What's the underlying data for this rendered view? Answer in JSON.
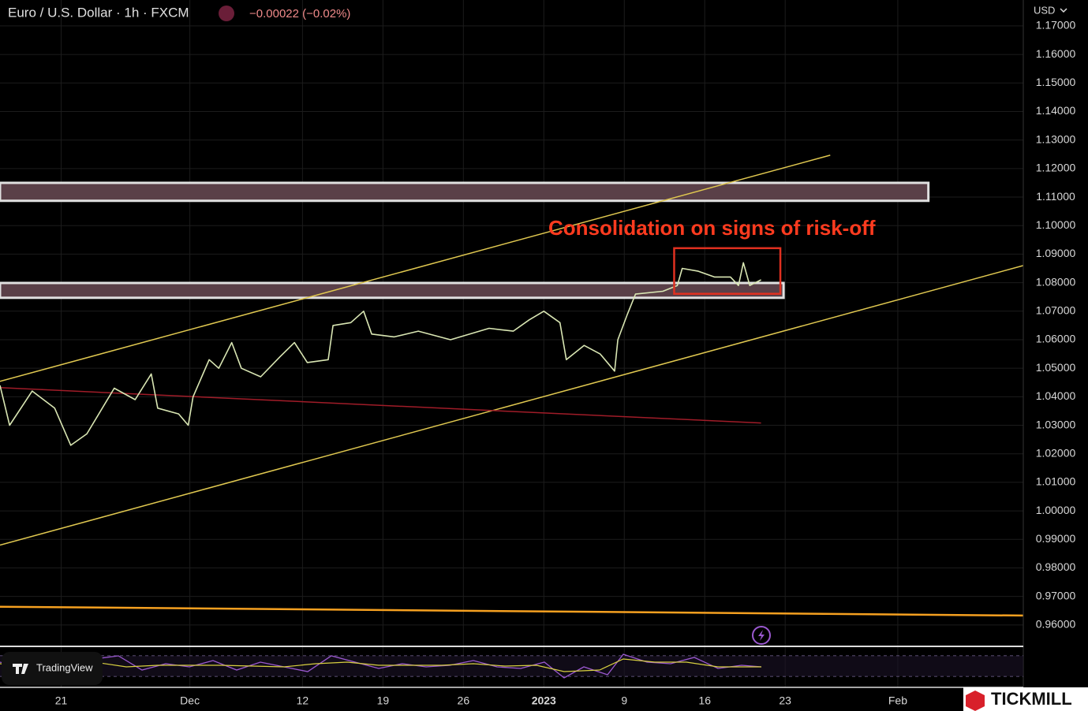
{
  "header": {
    "title": "Euro / U.S. Dollar · 1h · FXCM",
    "change": "−0.00022 (−0.02%)",
    "currency": "USD"
  },
  "chart_data": {
    "type": "line",
    "annotation": "Consolidation on signs of risk-off",
    "color": "#d9e6b3",
    "grid": true,
    "x": [
      -3.8,
      -3.2,
      -1.8,
      -0.4,
      0.6,
      1.6,
      3.3,
      4.6,
      5.6,
      6.0,
      7.3,
      7.9,
      8.2,
      9.2,
      9.8,
      10.6,
      11.2,
      12.4,
      13.6,
      14.5,
      15.3,
      16.6,
      16.9,
      18.0,
      18.8,
      19.3,
      20.7,
      22.2,
      24.2,
      26.6,
      28.1,
      29.1,
      30.0,
      31.0,
      31.4,
      32.5,
      33.5,
      34.4,
      34.6,
      35.2,
      35.7,
      37.4,
      38.3,
      38.6,
      39.6,
      40.6,
      41.6,
      42.1,
      42.4,
      42.8,
      43.5
    ],
    "values": [
      1.044,
      1.03,
      1.042,
      1.036,
      1.023,
      1.027,
      1.043,
      1.039,
      1.048,
      1.036,
      1.034,
      1.03,
      1.04,
      1.053,
      1.05,
      1.059,
      1.05,
      1.047,
      1.054,
      1.059,
      1.052,
      1.053,
      1.065,
      1.066,
      1.07,
      1.062,
      1.061,
      1.063,
      1.06,
      1.064,
      1.063,
      1.067,
      1.07,
      1.066,
      1.053,
      1.058,
      1.055,
      1.049,
      1.06,
      1.069,
      1.076,
      1.077,
      1.079,
      1.085,
      1.084,
      1.082,
      1.082,
      1.079,
      1.087,
      1.079,
      1.081
    ],
    "drawings": [
      {
        "kind": "zone",
        "color": "#5a4048",
        "x": [
          -3.8,
          53.9
        ],
        "values": [
          1.1087,
          1.115
        ]
      },
      {
        "kind": "zone",
        "color": "#5a4048",
        "x": [
          -3.8,
          44.9
        ],
        "values": [
          1.0747,
          1.0799
        ]
      },
      {
        "kind": "box",
        "color": "#e03020",
        "x": [
          38.1,
          44.7
        ],
        "values": [
          1.0761,
          1.0921
        ]
      },
      {
        "kind": "trendline",
        "color": "#e0c850",
        "x": [
          -3.8,
          47.8
        ],
        "values": [
          1.0454,
          1.1247
        ]
      },
      {
        "kind": "trendline",
        "color": "#e0c850",
        "x": [
          -3.8,
          59.8
        ],
        "values": [
          0.988,
          1.086
        ]
      },
      {
        "kind": "trendline",
        "color": "#a01c28",
        "x": [
          -3.8,
          43.5
        ],
        "values": [
          1.0432,
          1.0308
        ]
      },
      {
        "kind": "trendline",
        "color": "#f5a020",
        "x": [
          -3.8,
          59.8
        ],
        "values": [
          0.9664,
          0.9633
        ]
      }
    ],
    "xlim": [
      -3.8,
      59.8
    ],
    "xticks": [
      {
        "value": 0,
        "label": "21"
      },
      {
        "value": 8,
        "label": "Dec"
      },
      {
        "value": 15,
        "label": "12"
      },
      {
        "value": 20,
        "label": "19"
      },
      {
        "value": 25,
        "label": "26"
      },
      {
        "value": 30,
        "label": "2023"
      },
      {
        "value": 35,
        "label": "9"
      },
      {
        "value": 40,
        "label": "16"
      },
      {
        "value": 45,
        "label": "23"
      },
      {
        "value": 52,
        "label": "Feb"
      }
    ],
    "ylim": [
      0.9525,
      1.1791
    ],
    "yticks": [
      {
        "value": 0.96,
        "label": "0.96000"
      },
      {
        "value": 0.97,
        "label": "0.97000"
      },
      {
        "value": 0.98,
        "label": "0.98000"
      },
      {
        "value": 0.99,
        "label": "0.99000"
      },
      {
        "value": 1.0,
        "label": "1.00000"
      },
      {
        "value": 1.01,
        "label": "1.01000"
      },
      {
        "value": 1.02,
        "label": "1.02000"
      },
      {
        "value": 1.03,
        "label": "1.03000"
      },
      {
        "value": 1.04,
        "label": "1.04000"
      },
      {
        "value": 1.05,
        "label": "1.05000"
      },
      {
        "value": 1.06,
        "label": "1.06000"
      },
      {
        "value": 1.07,
        "label": "1.07000"
      },
      {
        "value": 1.08,
        "label": "1.08000"
      },
      {
        "value": 1.09,
        "label": "1.09000"
      },
      {
        "value": 1.1,
        "label": "1.10000"
      },
      {
        "value": 1.11,
        "label": "1.11000"
      },
      {
        "value": 1.12,
        "label": "1.12000"
      },
      {
        "value": 1.13,
        "label": "1.13000"
      },
      {
        "value": 1.14,
        "label": "1.14000"
      },
      {
        "value": 1.15,
        "label": "1.15000"
      },
      {
        "value": 1.16,
        "label": "1.16000"
      },
      {
        "value": 1.17,
        "label": "1.17000"
      }
    ]
  },
  "footer": {
    "watermark": "TradingView",
    "brand": "TICKMILL"
  }
}
